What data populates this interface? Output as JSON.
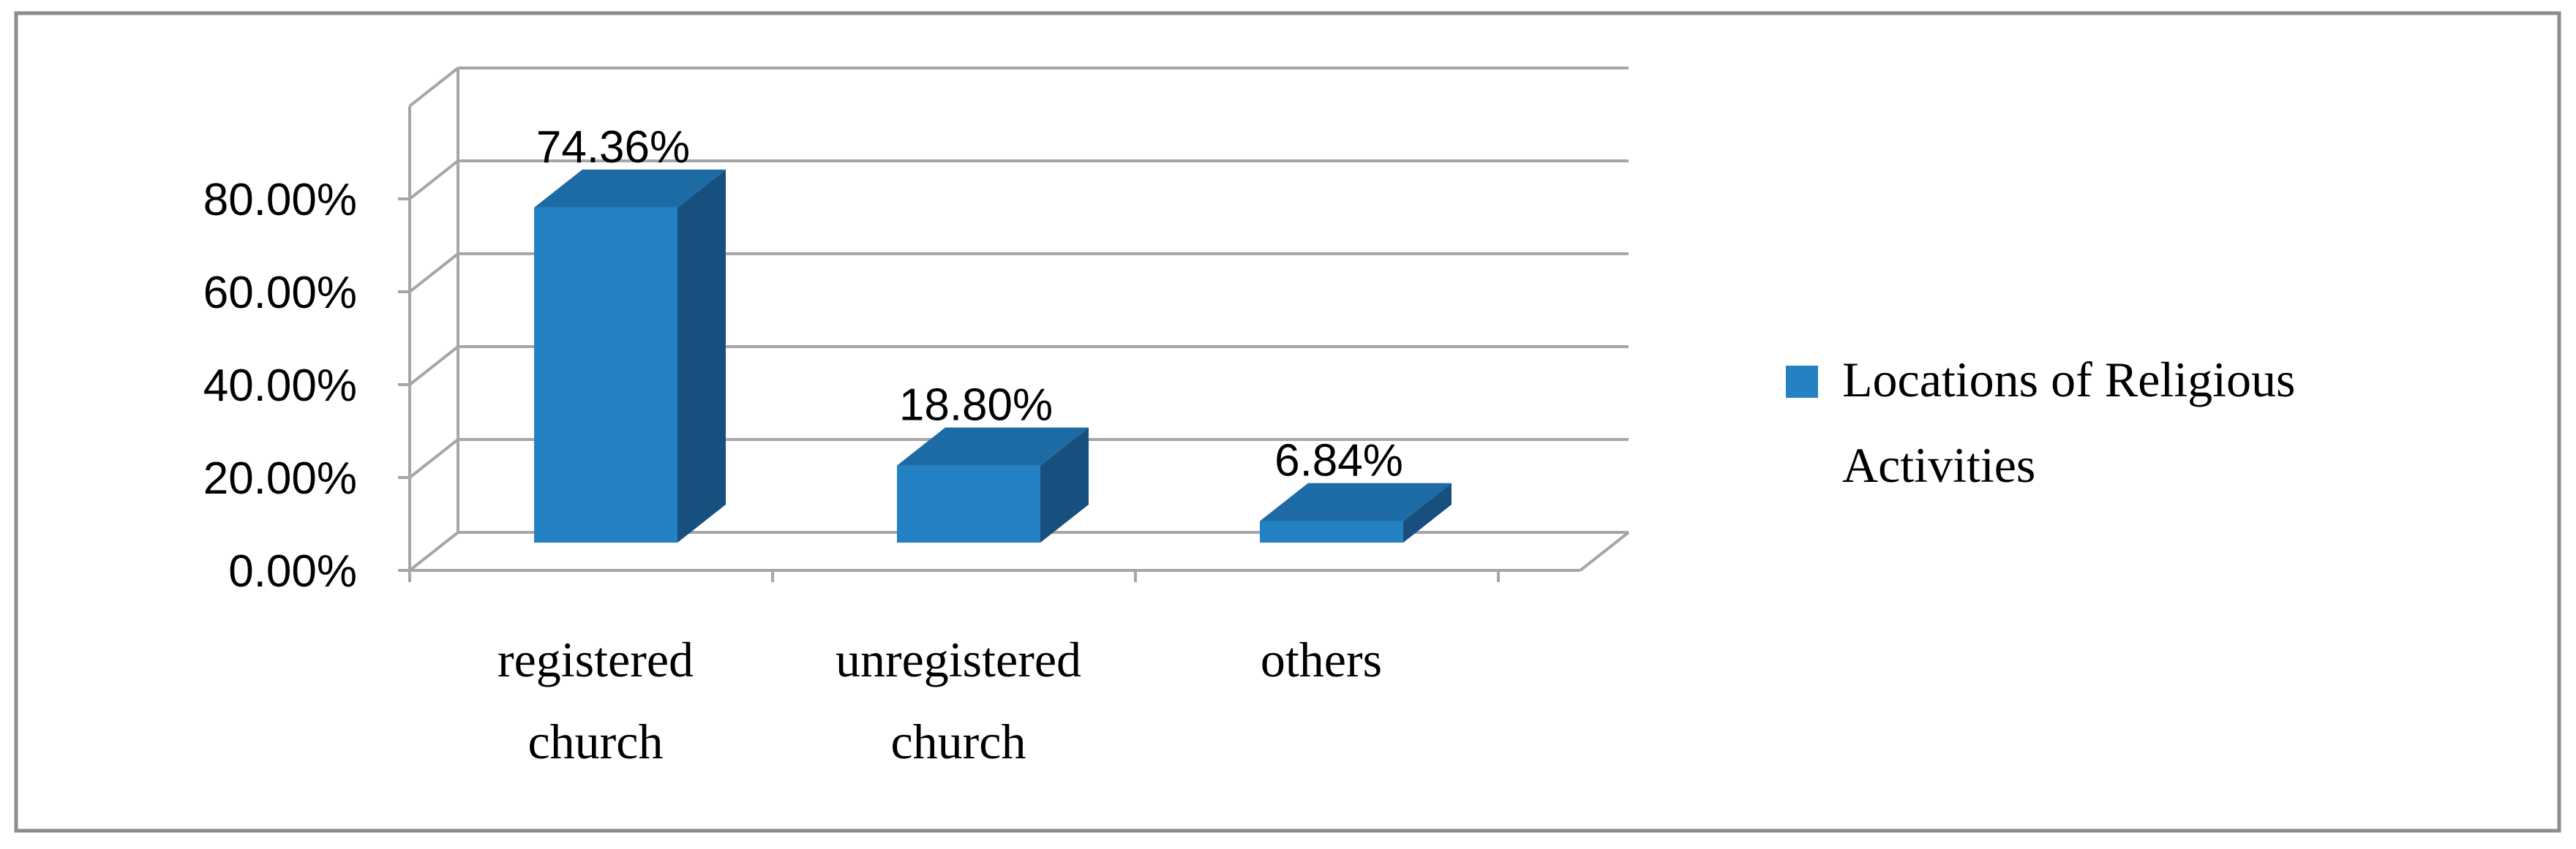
{
  "chart_data": {
    "type": "bar",
    "three_d": true,
    "categories": [
      "registered church",
      "unregistered church",
      "others"
    ],
    "category_lines": [
      [
        "registered",
        "church"
      ],
      [
        "unregistered",
        "church"
      ],
      [
        "others"
      ]
    ],
    "series": [
      {
        "name": "Locations of Religious Activities",
        "legend_lines": [
          "Locations of Religious",
          "Activities"
        ],
        "values": [
          74.36,
          18.8,
          6.84
        ],
        "data_labels": [
          "74.36%",
          "18.80%",
          "6.84%"
        ]
      }
    ],
    "y_ticks": [
      "0.00%",
      "20.00%",
      "40.00%",
      "60.00%",
      "80.00%"
    ],
    "y_tick_values": [
      0,
      20,
      40,
      60,
      80
    ],
    "ylim": [
      0,
      80
    ],
    "grid": true,
    "legend_position": "right",
    "title": "",
    "xlabel": "",
    "ylabel": ""
  },
  "colors": {
    "bar_front": "#2481C3",
    "bar_side": "#17507F",
    "bar_top": "#1D6BA5",
    "grid": "#A6A6A6",
    "frame": "#8C8C8C"
  }
}
